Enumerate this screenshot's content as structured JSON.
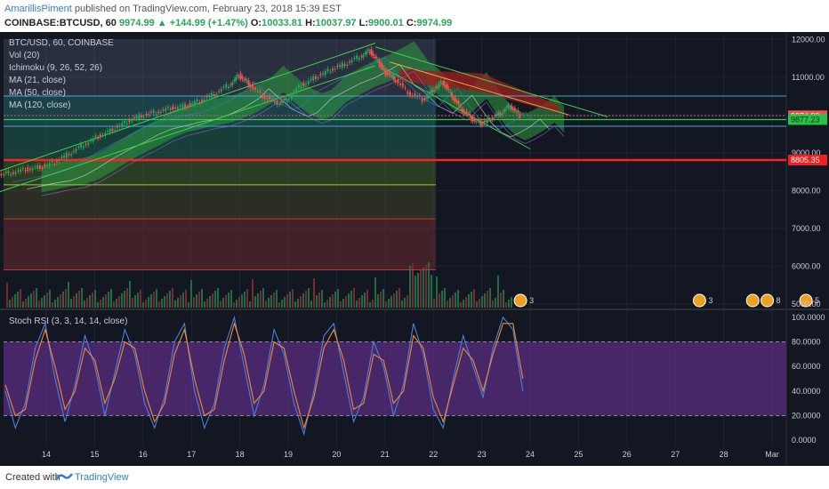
{
  "header": {
    "author": "AmarillisPiment",
    "published": "published on TradingView.com, February 23, 2018 15:39 EST",
    "symbol": "COINBASE:BTCUSD, 60",
    "last": "9974.99",
    "change": "▲ +144.99 (+1.47%)",
    "o_label": "O:",
    "o": "10033.81",
    "h_label": "H:",
    "h": "10037.97",
    "l_label": "L:",
    "l": "9900.01",
    "c_label": "C:",
    "c": "9974.99"
  },
  "footer": {
    "created_with": "Created with",
    "brand": "TradingView",
    "icon": "tradingview-logo-icon"
  },
  "colors": {
    "background": "#131722",
    "up": "#26a65b",
    "down": "#ef5350",
    "rsi_band": "#5b2d82",
    "accent": "#2f7fd0"
  },
  "chart_data": [
    {
      "type": "candlestick",
      "title": "BTC/USD, 60, COINBASE",
      "indicators": [
        "Vol (20)",
        "Ichimoku (9, 26, 52, 26)",
        "MA (21, close)",
        "MA (50, close)",
        "MA (120, close)"
      ],
      "x_ticks": [
        "14",
        "15",
        "16",
        "17",
        "18",
        "19",
        "20",
        "21",
        "22",
        "23",
        "24",
        "25",
        "26",
        "27",
        "28",
        "Mar"
      ],
      "y_ticks": [
        "12000.00",
        "11000.00",
        "10000.00",
        "9000.00",
        "8000.00",
        "7000.00",
        "6000.00",
        "5000.00"
      ],
      "ylim": [
        4900,
        12100
      ],
      "grid": true,
      "price_tags": [
        {
          "label": "9974.99",
          "value": 9974.99,
          "color": "#ef5350"
        },
        {
          "label": "9877.23",
          "value": 9877.23,
          "color": "#26c24a"
        },
        {
          "label": "8805.35",
          "value": 8805.35,
          "color": "#ef1f1f"
        }
      ],
      "close_path": [
        [
          13.0,
          8400
        ],
        [
          13.3,
          8480
        ],
        [
          13.6,
          8560
        ],
        [
          13.9,
          8620
        ],
        [
          14.2,
          8760
        ],
        [
          14.5,
          8980
        ],
        [
          14.8,
          9220
        ],
        [
          15.1,
          9430
        ],
        [
          15.4,
          9620
        ],
        [
          15.7,
          9830
        ],
        [
          16.0,
          9990
        ],
        [
          16.3,
          10080
        ],
        [
          16.6,
          10180
        ],
        [
          16.9,
          10240
        ],
        [
          17.2,
          10380
        ],
        [
          17.5,
          10560
        ],
        [
          17.8,
          10800
        ],
        [
          18.0,
          11050
        ],
        [
          18.2,
          10820
        ],
        [
          18.5,
          10500
        ],
        [
          18.8,
          10320
        ],
        [
          19.0,
          10420
        ],
        [
          19.3,
          10800
        ],
        [
          19.6,
          11000
        ],
        [
          19.9,
          11200
        ],
        [
          20.2,
          11350
        ],
        [
          20.5,
          11550
        ],
        [
          20.7,
          11700
        ],
        [
          20.9,
          11350
        ],
        [
          21.0,
          11150
        ],
        [
          21.2,
          10980
        ],
        [
          21.5,
          10600
        ],
        [
          21.8,
          10400
        ],
        [
          22.0,
          10650
        ],
        [
          22.2,
          10880
        ],
        [
          22.4,
          10500
        ],
        [
          22.6,
          10150
        ],
        [
          22.8,
          9900
        ],
        [
          23.0,
          9780
        ],
        [
          23.2,
          9900
        ],
        [
          23.4,
          10050
        ],
        [
          23.6,
          10250
        ],
        [
          23.8,
          9975
        ]
      ],
      "support_lines": [
        {
          "value": 10500,
          "label": "h1"
        },
        {
          "value": 9980,
          "label": "h2"
        },
        {
          "value": 9877.23,
          "label": "h3"
        },
        {
          "value": 9700,
          "label": "h4"
        },
        {
          "value": 8805.35,
          "label": "h5"
        },
        {
          "value": 8150,
          "label": "h6"
        },
        {
          "value": 7250,
          "label": "h7"
        },
        {
          "value": 5900,
          "label": "h8"
        }
      ]
    },
    {
      "type": "line",
      "title": "Stoch RSI (3, 3, 14, 14, close)",
      "y_ticks": [
        "100.0000",
        "80.0000",
        "60.0000",
        "40.0000",
        "20.0000",
        "0.0000"
      ],
      "ylim": [
        -5,
        105
      ],
      "bands": [
        20,
        80
      ],
      "series": [
        {
          "values": [
            40,
            10,
            30,
            75,
            95,
            50,
            15,
            45,
            85,
            60,
            20,
            55,
            90,
            70,
            30,
            10,
            35,
            80,
            95,
            40,
            10,
            30,
            75,
            100,
            60,
            20,
            45,
            90,
            70,
            30,
            5,
            40,
            85,
            95,
            55,
            15,
            35,
            80,
            60,
            20,
            45,
            95,
            70,
            25,
            10,
            50,
            85,
            60,
            35,
            75,
            100,
            90,
            40
          ]
        },
        {
          "values": [
            45,
            20,
            25,
            65,
            90,
            60,
            25,
            40,
            75,
            65,
            30,
            50,
            80,
            75,
            40,
            15,
            30,
            70,
            90,
            50,
            20,
            25,
            65,
            95,
            70,
            30,
            40,
            80,
            75,
            40,
            10,
            35,
            75,
            90,
            65,
            25,
            30,
            70,
            65,
            30,
            40,
            85,
            75,
            35,
            15,
            45,
            75,
            65,
            40,
            70,
            95,
            95,
            50
          ]
        }
      ]
    }
  ]
}
